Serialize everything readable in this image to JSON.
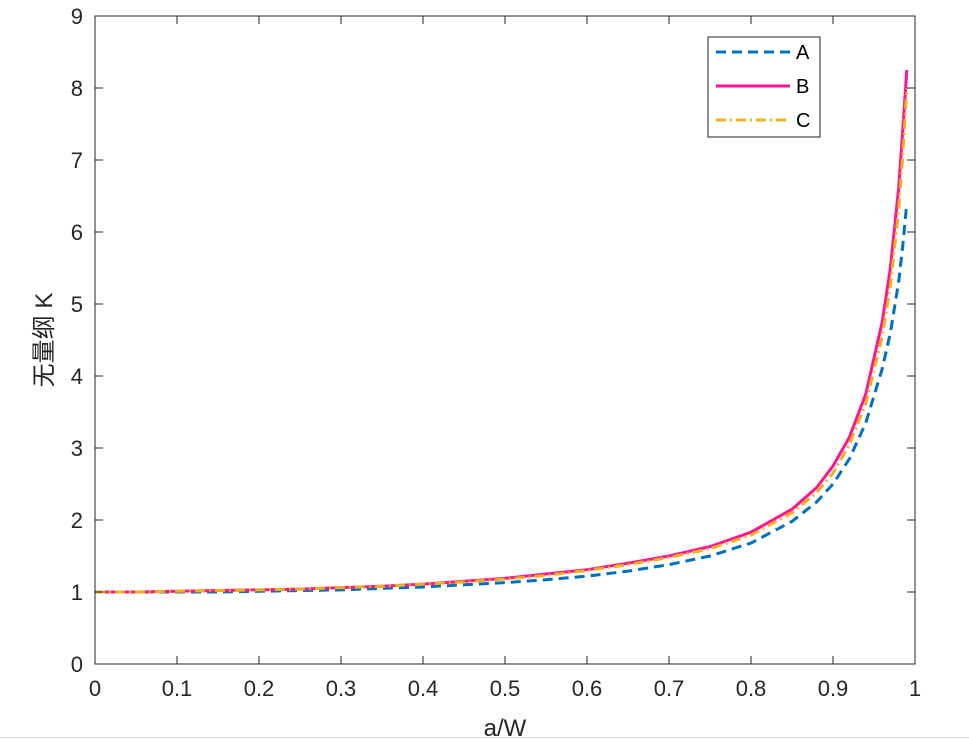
{
  "chart_data": {
    "type": "line",
    "title": "",
    "xlabel": "a/W",
    "ylabel": "无量纲 K",
    "xlim": [
      0,
      1
    ],
    "ylim": [
      0,
      9
    ],
    "xticks": [
      0,
      0.1,
      0.2,
      0.3,
      0.4,
      0.5,
      0.6,
      0.7,
      0.8,
      0.9,
      1
    ],
    "xtick_labels": [
      "0",
      "0.1",
      "0.2",
      "0.3",
      "0.4",
      "0.5",
      "0.6",
      "0.7",
      "0.8",
      "0.9",
      "1"
    ],
    "yticks": [
      0,
      1,
      2,
      3,
      4,
      5,
      6,
      7,
      8,
      9
    ],
    "ytick_labels": [
      "0",
      "1",
      "2",
      "3",
      "4",
      "5",
      "6",
      "7",
      "8",
      "9"
    ],
    "grid": false,
    "legend": "top-right",
    "series": [
      {
        "name": "A",
        "color": "#0072BD",
        "style": "dashed",
        "x": [
          0,
          0.05,
          0.1,
          0.15,
          0.2,
          0.25,
          0.3,
          0.35,
          0.4,
          0.45,
          0.5,
          0.55,
          0.6,
          0.65,
          0.7,
          0.75,
          0.8,
          0.85,
          0.88,
          0.9,
          0.92,
          0.94,
          0.96,
          0.97,
          0.98,
          0.985,
          0.99
        ],
        "y": [
          1.0,
          1.0,
          1.0,
          1.0,
          1.01,
          1.02,
          1.03,
          1.05,
          1.07,
          1.1,
          1.13,
          1.17,
          1.22,
          1.29,
          1.38,
          1.5,
          1.68,
          1.98,
          2.25,
          2.5,
          2.85,
          3.35,
          4.1,
          4.6,
          5.3,
          5.8,
          6.4
        ]
      },
      {
        "name": "B",
        "color": "#FF1493",
        "style": "solid",
        "x": [
          0,
          0.05,
          0.1,
          0.15,
          0.2,
          0.25,
          0.3,
          0.35,
          0.4,
          0.45,
          0.5,
          0.55,
          0.6,
          0.65,
          0.7,
          0.75,
          0.8,
          0.85,
          0.88,
          0.9,
          0.92,
          0.94,
          0.96,
          0.97,
          0.98,
          0.985,
          0.99
        ],
        "y": [
          1.0,
          1.0,
          1.01,
          1.02,
          1.03,
          1.04,
          1.06,
          1.08,
          1.11,
          1.15,
          1.19,
          1.25,
          1.31,
          1.4,
          1.5,
          1.63,
          1.83,
          2.15,
          2.45,
          2.75,
          3.15,
          3.75,
          4.75,
          5.5,
          6.6,
          7.4,
          8.25
        ]
      },
      {
        "name": "C",
        "color": "#EDB120",
        "style": "dashdot",
        "x": [
          0,
          0.05,
          0.1,
          0.15,
          0.2,
          0.25,
          0.3,
          0.35,
          0.4,
          0.45,
          0.5,
          0.55,
          0.6,
          0.65,
          0.7,
          0.75,
          0.8,
          0.85,
          0.88,
          0.9,
          0.92,
          0.94,
          0.96,
          0.97,
          0.98,
          0.985,
          0.99
        ],
        "y": [
          1.0,
          1.0,
          1.01,
          1.02,
          1.03,
          1.04,
          1.06,
          1.08,
          1.11,
          1.14,
          1.18,
          1.23,
          1.3,
          1.38,
          1.48,
          1.6,
          1.79,
          2.1,
          2.38,
          2.65,
          3.05,
          3.62,
          4.55,
          5.25,
          6.3,
          7.05,
          8.0
        ]
      }
    ]
  }
}
